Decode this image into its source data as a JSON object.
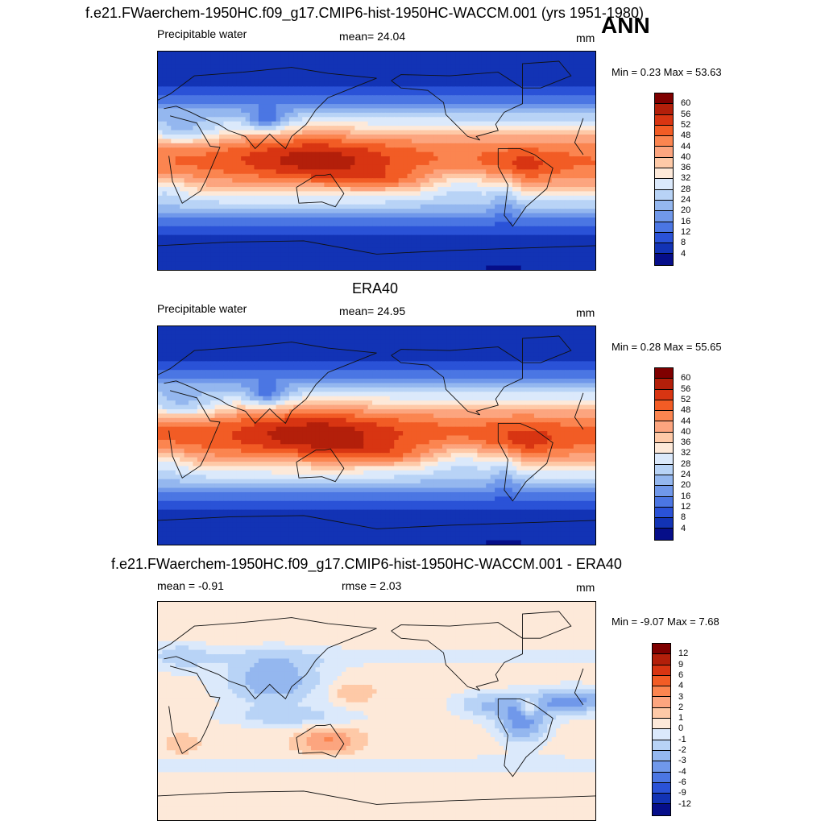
{
  "header": {
    "main_title": "f.e21.FWaerchem-1950HC.f09_g17.CMIP6-hist-1950HC-WACCM.001 (yrs 1951-1980)",
    "season": "ANN"
  },
  "panels": [
    {
      "title": "",
      "left_label": "Precipitable water",
      "center_label": "mean=  24.04",
      "right_label": "mm",
      "minmax": "Min =   0.23 Max =  53.63",
      "colorbar": {
        "ticks": [
          "60",
          "56",
          "52",
          "48",
          "44",
          "40",
          "36",
          "32",
          "28",
          "24",
          "20",
          "16",
          "12",
          "8",
          "4"
        ],
        "colors": [
          "#7f0000",
          "#b31f0a",
          "#d83512",
          "#f25c25",
          "#fb8550",
          "#fca57f",
          "#fec9a7",
          "#fde9d9",
          "#dbe9fb",
          "#b8d3f6",
          "#94b7ef",
          "#7098ea",
          "#4b76e3",
          "#2a52d7",
          "#1233b5",
          "#060e89"
        ]
      },
      "field": "pw_model"
    },
    {
      "title": "ERA40",
      "left_label": "Precipitable water",
      "center_label": "mean=  24.95",
      "right_label": "mm",
      "minmax": "Min =   0.28 Max =  55.65",
      "colorbar": {
        "ticks": [
          "60",
          "56",
          "52",
          "48",
          "44",
          "40",
          "36",
          "32",
          "28",
          "24",
          "20",
          "16",
          "12",
          "8",
          "4"
        ],
        "colors": [
          "#7f0000",
          "#b31f0a",
          "#d83512",
          "#f25c25",
          "#fb8550",
          "#fca57f",
          "#fec9a7",
          "#fde9d9",
          "#dbe9fb",
          "#b8d3f6",
          "#94b7ef",
          "#7098ea",
          "#4b76e3",
          "#2a52d7",
          "#1233b5",
          "#060e89"
        ]
      },
      "field": "pw_obs"
    },
    {
      "title": "f.e21.FWaerchem-1950HC.f09_g17.CMIP6-hist-1950HC-WACCM.001 - ERA40",
      "left_label": "mean =  -0.91",
      "center_label": "rmse =   2.03",
      "right_label": "mm",
      "minmax": "Min =  -9.07 Max =   7.68",
      "colorbar": {
        "ticks": [
          "12",
          "9",
          "6",
          "4",
          "3",
          "2",
          "1",
          "0",
          "-1",
          "-2",
          "-3",
          "-4",
          "-6",
          "-9",
          "-12"
        ],
        "colors": [
          "#7f0000",
          "#b31f0a",
          "#d83512",
          "#f25c25",
          "#fb8550",
          "#fca57f",
          "#fec9a7",
          "#fde9d9",
          "#dbe9fb",
          "#b8d3f6",
          "#94b7ef",
          "#7098ea",
          "#4b76e3",
          "#2a52d7",
          "#1233b5",
          "#060e89"
        ]
      },
      "field": "diff"
    }
  ]
}
